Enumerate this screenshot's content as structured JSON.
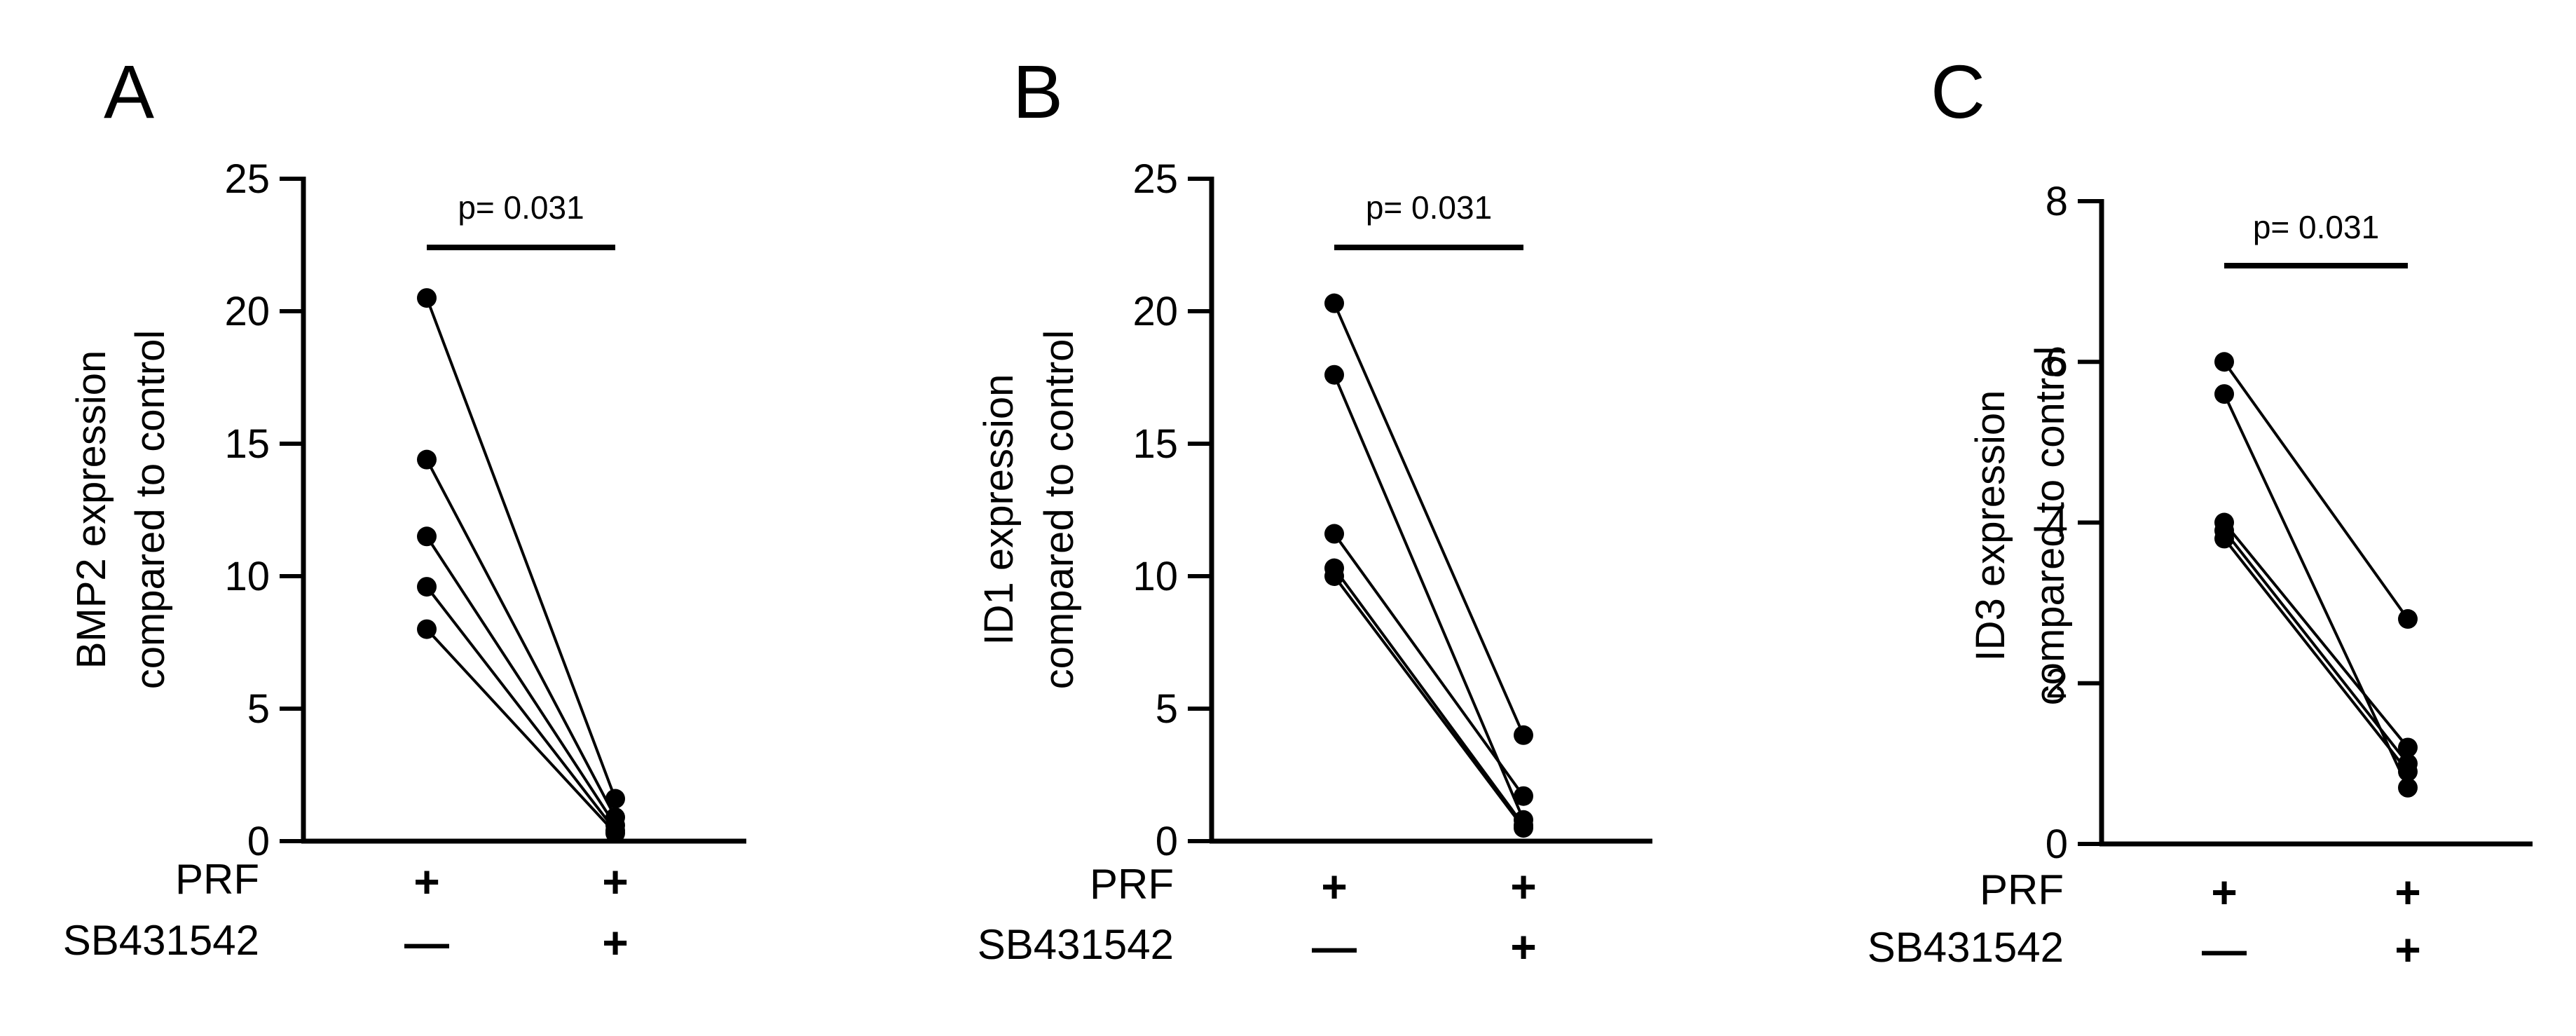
{
  "chart_data": [
    {
      "type": "paired-scatter",
      "panel": "A",
      "ylabel": [
        "BMP2 expression",
        "compared to control"
      ],
      "ylim": [
        0,
        25
      ],
      "yticks": [
        "0",
        "5",
        "10",
        "15",
        "20",
        "25"
      ],
      "row_labels": [
        "PRF",
        "SB431542"
      ],
      "conditions": [
        {
          "PRF": "+",
          "SB431542": "—"
        },
        {
          "PRF": "+",
          "SB431542": "+"
        }
      ],
      "pairs": [
        [
          20.5,
          1.6
        ],
        [
          14.4,
          0.9
        ],
        [
          11.5,
          0.6
        ],
        [
          9.6,
          0.4
        ],
        [
          8.0,
          0.3
        ]
      ],
      "pvalue": "p= 0.031"
    },
    {
      "type": "paired-scatter",
      "panel": "B",
      "ylabel": [
        "ID1 expression",
        "compared to control"
      ],
      "ylim": [
        0,
        25
      ],
      "yticks": [
        "0",
        "5",
        "10",
        "15",
        "20",
        "25"
      ],
      "row_labels": [
        "PRF",
        "SB431542"
      ],
      "conditions": [
        {
          "PRF": "+",
          "SB431542": "—"
        },
        {
          "PRF": "+",
          "SB431542": "+"
        }
      ],
      "pairs": [
        [
          20.3,
          4.0
        ],
        [
          17.6,
          0.8
        ],
        [
          11.6,
          1.7
        ],
        [
          10.3,
          0.6
        ],
        [
          10.0,
          0.5
        ]
      ],
      "pvalue": "p= 0.031"
    },
    {
      "type": "paired-scatter",
      "panel": "C",
      "ylabel": [
        "ID3 expression",
        "compared to control"
      ],
      "ylim": [
        0,
        8
      ],
      "yticks": [
        "0",
        "2",
        "4",
        "6",
        "8"
      ],
      "row_labels": [
        "PRF",
        "SB431542"
      ],
      "conditions": [
        {
          "PRF": "+",
          "SB431542": "—"
        },
        {
          "PRF": "+",
          "SB431542": "+"
        }
      ],
      "pairs": [
        [
          6.0,
          2.8
        ],
        [
          5.6,
          0.7
        ],
        [
          4.0,
          1.2
        ],
        [
          3.9,
          1.0
        ],
        [
          3.8,
          0.9
        ]
      ],
      "pvalue": "p= 0.031"
    }
  ]
}
